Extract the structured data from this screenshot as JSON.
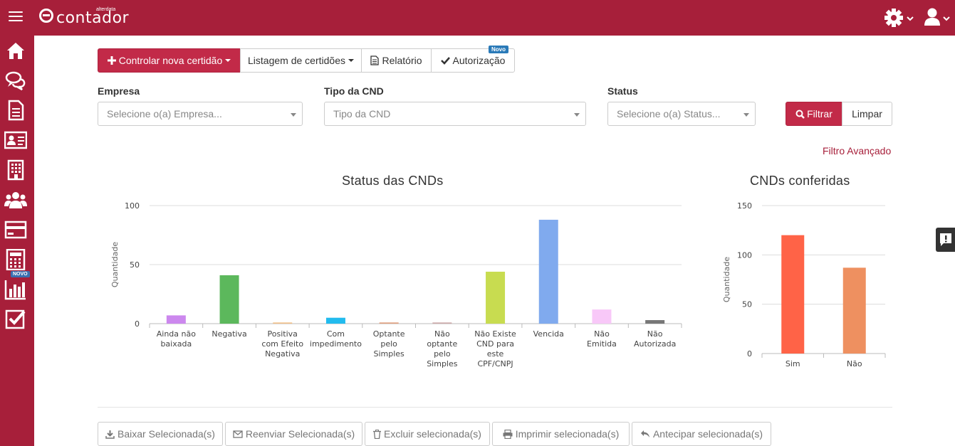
{
  "brand": {
    "name": "contador",
    "small": "alterdata"
  },
  "header": {
    "settings_icon": "gear-icon",
    "user_icon": "user-icon"
  },
  "sidebar": {
    "items": [
      "home-icon",
      "chat-icon",
      "document-icon",
      "id-card-icon",
      "building-icon",
      "users-icon",
      "card-icon",
      "calculator-icon",
      "bar-chart-icon",
      "checkbox-icon"
    ],
    "badge": "NOVO"
  },
  "toolbar": {
    "new_label": "Controlar nova certidão",
    "list_label": "Listagem de certidões",
    "report_label": "Relatório",
    "auth_label": "Autorização",
    "novo_badge": "Novo"
  },
  "filters": {
    "empresa": {
      "label": "Empresa",
      "placeholder": "Selecione o(a) Empresa..."
    },
    "tipo": {
      "label": "Tipo da CND",
      "placeholder": "Tipo da CND"
    },
    "status": {
      "label": "Status",
      "placeholder": "Selecione o(a) Status..."
    },
    "filter_label": "Filtrar",
    "clear_label": "Limpar",
    "advanced_label": "Filtro Avançado"
  },
  "chart_data": [
    {
      "type": "bar",
      "title": "Status das CNDs",
      "ylabel": "Quantidade",
      "ylim": [
        0,
        100
      ],
      "yticks": [
        0,
        50,
        100
      ],
      "categories": [
        [
          "Ainda não",
          "baixada"
        ],
        [
          "Negativa"
        ],
        [
          "Positiva",
          "com Efeito",
          "Negativa"
        ],
        [
          "Com",
          "impedimento"
        ],
        [
          "Optante",
          "pelo",
          "Simples"
        ],
        [
          "Não",
          "optante",
          "pelo",
          "Simples"
        ],
        [
          "Não Existe",
          "CND para",
          "este",
          "CPF/CNPJ"
        ],
        [
          "Vencida"
        ],
        [
          "Não",
          "Emitida"
        ],
        [
          "Não",
          "Autorizada"
        ]
      ],
      "values": [
        7,
        41,
        1,
        5,
        1,
        1,
        44,
        88,
        12,
        3
      ],
      "colors": [
        "#cc88ee",
        "#5cb85c",
        "#f0c08a",
        "#22bbee",
        "#e0a080",
        "#ccaaaa",
        "#c8dc50",
        "#80aaee",
        "#f8c8f8",
        "#777777"
      ]
    },
    {
      "type": "bar",
      "title": "CNDs conferidas",
      "ylabel": "Quantidade",
      "ylim": [
        0,
        150
      ],
      "yticks": [
        0,
        50,
        100,
        150
      ],
      "categories": [
        [
          "Sim"
        ],
        [
          "Não"
        ]
      ],
      "values": [
        120,
        87
      ],
      "colors": [
        "#ff6347",
        "#ee9060"
      ]
    }
  ],
  "actions": {
    "download": "Baixar Selecionada(s)",
    "resend": "Reenviar Selecionada(s)",
    "delete": "Excluir selecionada(s)",
    "print": "Imprimir selecionada(s)",
    "anticipate": "Antecipar selecionada(s)"
  }
}
